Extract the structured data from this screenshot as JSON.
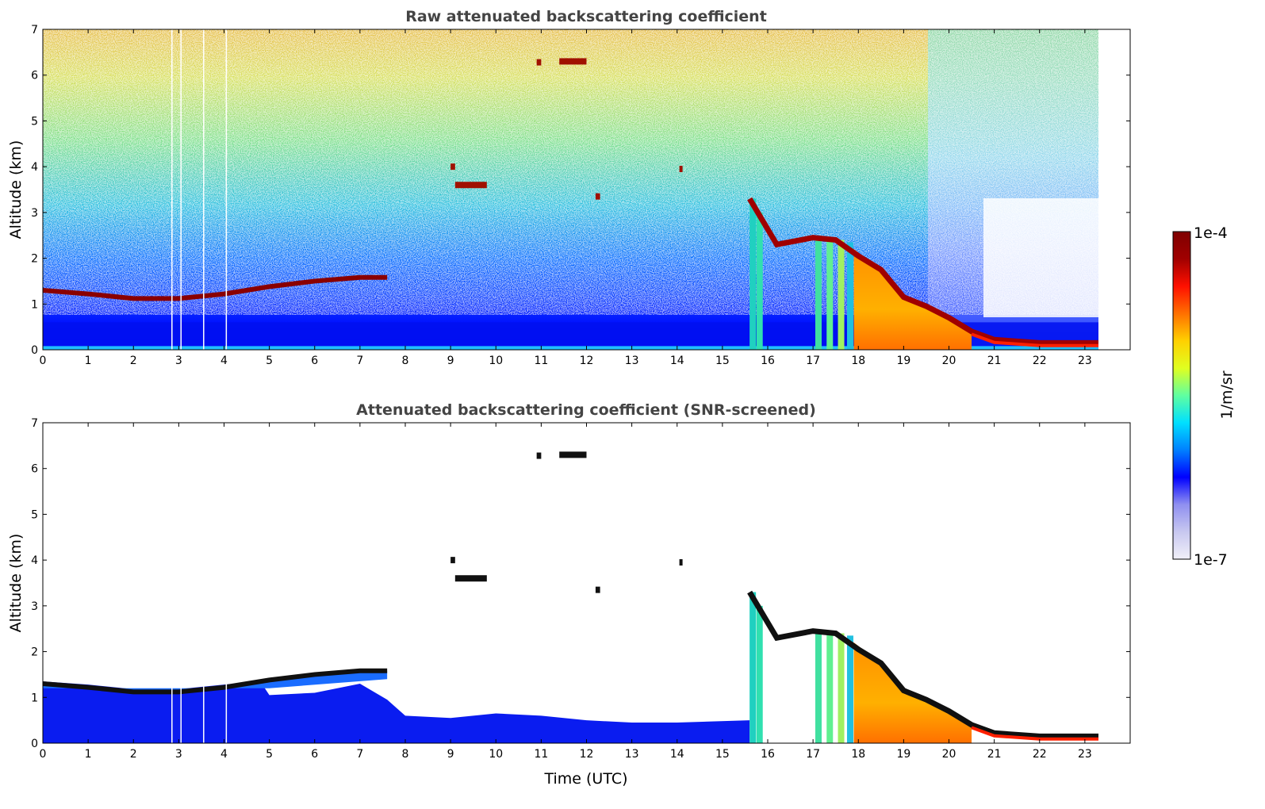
{
  "chart_data": [
    {
      "type": "heatmap",
      "title": "Raw attenuated backscattering coefficient",
      "xlabel": "",
      "ylabel": "Altitude (km)",
      "xlim": [
        0,
        24
      ],
      "ylim": [
        0,
        7
      ],
      "x_ticks": [
        "0",
        "1",
        "2",
        "3",
        "4",
        "5",
        "6",
        "7",
        "8",
        "9",
        "10",
        "11",
        "12",
        "13",
        "14",
        "15",
        "16",
        "17",
        "18",
        "19",
        "20",
        "21",
        "22",
        "23"
      ],
      "y_ticks": [
        "0",
        "1",
        "2",
        "3",
        "4",
        "5",
        "6",
        "7"
      ],
      "data_end_hour": 23.3,
      "boundary_layer_top_km": [
        [
          0,
          1.3
        ],
        [
          1,
          1.22
        ],
        [
          2,
          1.12
        ],
        [
          3,
          1.12
        ],
        [
          4,
          1.22
        ],
        [
          5,
          1.38
        ],
        [
          6,
          1.5
        ],
        [
          7,
          1.58
        ],
        [
          7.6,
          1.58
        ]
      ],
      "cloud_base_km": [
        [
          15.6,
          3.3
        ],
        [
          16.2,
          2.3
        ],
        [
          17,
          2.45
        ],
        [
          17.5,
          2.4
        ],
        [
          18,
          2.05
        ],
        [
          18.5,
          1.75
        ],
        [
          19,
          1.15
        ],
        [
          19.5,
          0.95
        ],
        [
          20,
          0.7
        ],
        [
          20.5,
          0.4
        ],
        [
          21,
          0.22
        ],
        [
          22,
          0.15
        ],
        [
          23.3,
          0.15
        ]
      ],
      "elevated_features": [
        {
          "x": [
            9.1,
            9.8
          ],
          "y": 3.6
        },
        {
          "x": [
            11.4,
            12.0
          ],
          "y": 6.3
        },
        {
          "x": [
            10.9,
            11.0
          ],
          "y": 6.28
        },
        {
          "x": [
            9.0,
            9.1
          ],
          "y": 4.0
        },
        {
          "x": [
            12.2,
            12.3
          ],
          "y": 3.35
        },
        {
          "x": [
            14.05,
            14.1
          ],
          "y": 3.95
        }
      ],
      "grid": false
    },
    {
      "type": "heatmap",
      "title": "Attenuated backscattering coefficient (SNR-screened)",
      "xlabel": "Time (UTC)",
      "ylabel": "Altitude (km)",
      "xlim": [
        0,
        24
      ],
      "ylim": [
        0,
        7
      ],
      "x_ticks": [
        "0",
        "1",
        "2",
        "3",
        "4",
        "5",
        "6",
        "7",
        "8",
        "9",
        "10",
        "11",
        "12",
        "13",
        "14",
        "15",
        "16",
        "17",
        "18",
        "19",
        "20",
        "21",
        "22",
        "23"
      ],
      "y_ticks": [
        "0",
        "1",
        "2",
        "3",
        "4",
        "5",
        "6",
        "7"
      ],
      "data_end_hour": 23.3,
      "grid": false
    }
  ],
  "colorbar": {
    "label": "1/m/sr",
    "max_label": "1e-4",
    "min_label": "1e-7",
    "colors": [
      "#f1f0f8",
      "#c8c8f0",
      "#8f8ff0",
      "#0000ff",
      "#0080ff",
      "#00e0ff",
      "#60ffa0",
      "#e0ff20",
      "#ffd000",
      "#ff7000",
      "#ff1000",
      "#a00000",
      "#7f0000"
    ]
  }
}
